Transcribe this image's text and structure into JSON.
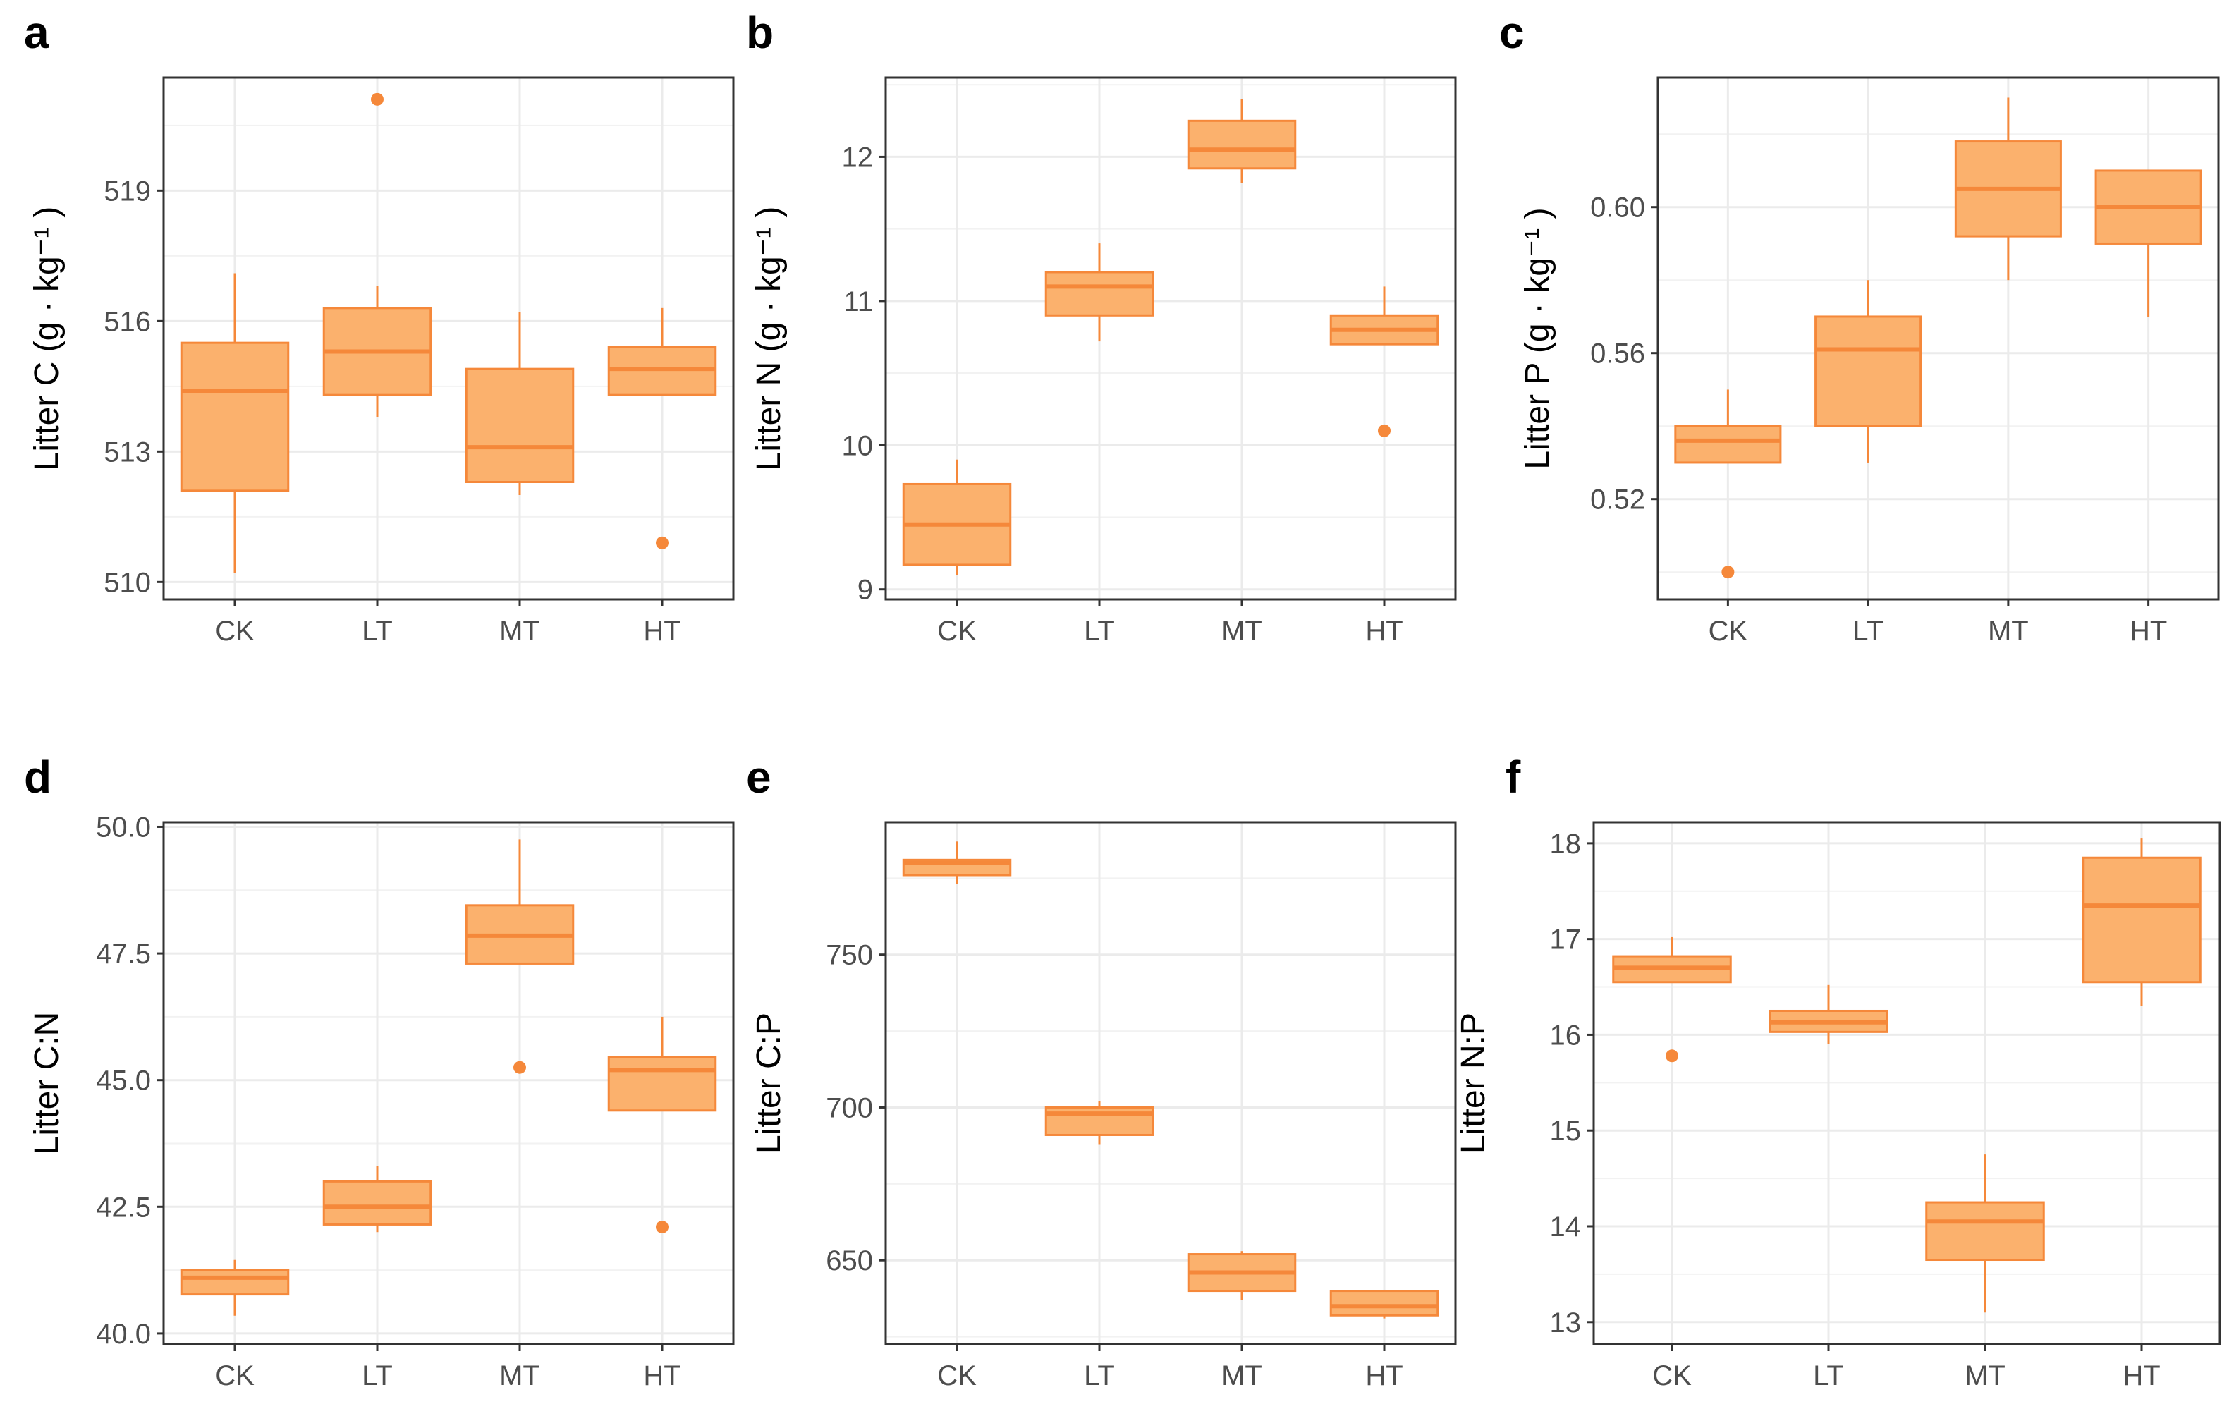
{
  "style": {
    "box_fill": "#fbb16d",
    "box_line": "#f5883a",
    "grid_major": "#ebebeb",
    "grid_minor": "#f2f2f2",
    "panel_border": "#333333"
  },
  "chart_data": [
    {
      "panel": "a",
      "type": "box",
      "ylabel": "Litter C (g · kg⁻¹ )",
      "categories": [
        "CK",
        "LT",
        "MT",
        "HT"
      ],
      "yticks": [
        510,
        513,
        516,
        519
      ],
      "yticklabels": [
        "510",
        "513",
        "516",
        "519"
      ],
      "ylim": [
        509.6,
        521.6
      ],
      "boxes": [
        {
          "category": "CK",
          "min": 510.2,
          "q1": 512.1,
          "median": 514.4,
          "q3": 515.5,
          "max": 517.1,
          "outliers": []
        },
        {
          "category": "LT",
          "min": 513.8,
          "q1": 514.3,
          "median": 515.3,
          "q3": 516.3,
          "max": 516.8,
          "outliers": [
            521.1
          ]
        },
        {
          "category": "MT",
          "min": 512.0,
          "q1": 512.3,
          "median": 513.1,
          "q3": 514.9,
          "max": 516.2,
          "outliers": []
        },
        {
          "category": "HT",
          "min": 514.3,
          "q1": 514.3,
          "median": 514.9,
          "q3": 515.4,
          "max": 516.3,
          "outliers": [
            510.9
          ]
        }
      ]
    },
    {
      "panel": "b",
      "type": "box",
      "ylabel": "Litter N (g · kg⁻¹ )",
      "categories": [
        "CK",
        "LT",
        "MT",
        "HT"
      ],
      "yticks": [
        9,
        10,
        11,
        12
      ],
      "yticklabels": [
        "9",
        "10",
        "11",
        "12"
      ],
      "ylim": [
        8.93,
        12.55
      ],
      "boxes": [
        {
          "category": "CK",
          "min": 9.1,
          "q1": 9.17,
          "median": 9.45,
          "q3": 9.73,
          "max": 9.9,
          "outliers": []
        },
        {
          "category": "LT",
          "min": 10.72,
          "q1": 10.9,
          "median": 11.1,
          "q3": 11.2,
          "max": 11.4,
          "outliers": []
        },
        {
          "category": "MT",
          "min": 11.82,
          "q1": 11.92,
          "median": 12.05,
          "q3": 12.25,
          "max": 12.4,
          "outliers": []
        },
        {
          "category": "HT",
          "min": 10.7,
          "q1": 10.7,
          "median": 10.8,
          "q3": 10.9,
          "max": 11.1,
          "outliers": [
            10.1
          ]
        }
      ]
    },
    {
      "panel": "c",
      "type": "box",
      "ylabel": "Litter P (g · kg⁻¹ )",
      "categories": [
        "CK",
        "LT",
        "MT",
        "HT"
      ],
      "yticks": [
        0.52,
        0.56,
        0.6
      ],
      "yticklabels": [
        "0.52",
        "0.56",
        "0.60"
      ],
      "ylim": [
        0.4925,
        0.6355
      ],
      "boxes": [
        {
          "category": "CK",
          "min": 0.53,
          "q1": 0.53,
          "median": 0.536,
          "q3": 0.54,
          "max": 0.55,
          "outliers": [
            0.5
          ]
        },
        {
          "category": "LT",
          "min": 0.53,
          "q1": 0.54,
          "median": 0.561,
          "q3": 0.57,
          "max": 0.58,
          "outliers": []
        },
        {
          "category": "MT",
          "min": 0.58,
          "q1": 0.592,
          "median": 0.605,
          "q3": 0.618,
          "max": 0.63,
          "outliers": []
        },
        {
          "category": "HT",
          "min": 0.57,
          "q1": 0.59,
          "median": 0.6,
          "q3": 0.61,
          "max": 0.61,
          "outliers": []
        }
      ]
    },
    {
      "panel": "d",
      "type": "box",
      "ylabel": "Litter C:N",
      "categories": [
        "CK",
        "LT",
        "MT",
        "HT"
      ],
      "yticks": [
        40.0,
        42.5,
        45.0,
        47.5,
        50.0
      ],
      "yticklabels": [
        "40.0",
        "42.5",
        "45.0",
        "47.5",
        "50.0"
      ],
      "ylim": [
        39.79,
        50.09
      ],
      "boxes": [
        {
          "category": "CK",
          "min": 40.35,
          "q1": 40.77,
          "median": 41.1,
          "q3": 41.25,
          "max": 41.45,
          "outliers": []
        },
        {
          "category": "LT",
          "min": 42.0,
          "q1": 42.15,
          "median": 42.5,
          "q3": 43.0,
          "max": 43.3,
          "outliers": []
        },
        {
          "category": "MT",
          "min": 47.3,
          "q1": 47.3,
          "median": 47.85,
          "q3": 48.45,
          "max": 49.75,
          "outliers": [
            45.25
          ]
        },
        {
          "category": "HT",
          "min": 44.4,
          "q1": 44.4,
          "median": 45.2,
          "q3": 45.45,
          "max": 46.25,
          "outliers": [
            42.1
          ]
        }
      ]
    },
    {
      "panel": "e",
      "type": "box",
      "ylabel": "Litter C:P",
      "categories": [
        "CK",
        "LT",
        "MT",
        "HT"
      ],
      "yticks": [
        650,
        700,
        750
      ],
      "yticklabels": [
        "650",
        "700",
        "750"
      ],
      "ylim": [
        622.6,
        793.3
      ],
      "boxes": [
        {
          "category": "CK",
          "min": 773,
          "q1": 776,
          "median": 780,
          "q3": 781,
          "max": 787,
          "outliers": []
        },
        {
          "category": "LT",
          "min": 688,
          "q1": 691,
          "median": 698,
          "q3": 700,
          "max": 702,
          "outliers": []
        },
        {
          "category": "MT",
          "min": 637,
          "q1": 640,
          "median": 646,
          "q3": 652,
          "max": 653,
          "outliers": []
        },
        {
          "category": "HT",
          "min": 631,
          "q1": 632,
          "median": 635,
          "q3": 640,
          "max": 640,
          "outliers": []
        }
      ]
    },
    {
      "panel": "f",
      "type": "box",
      "ylabel": "Litter N:P",
      "categories": [
        "CK",
        "LT",
        "MT",
        "HT"
      ],
      "yticks": [
        13,
        14,
        15,
        16,
        17,
        18
      ],
      "yticklabels": [
        "13",
        "14",
        "15",
        "16",
        "17",
        "18"
      ],
      "ylim": [
        12.77,
        18.22
      ],
      "boxes": [
        {
          "category": "CK",
          "min": 16.55,
          "q1": 16.55,
          "median": 16.7,
          "q3": 16.82,
          "max": 17.02,
          "outliers": [
            15.78
          ]
        },
        {
          "category": "LT",
          "min": 15.9,
          "q1": 16.03,
          "median": 16.13,
          "q3": 16.25,
          "max": 16.52,
          "outliers": []
        },
        {
          "category": "MT",
          "min": 13.1,
          "q1": 13.65,
          "median": 14.05,
          "q3": 14.25,
          "max": 14.75,
          "outliers": []
        },
        {
          "category": "HT",
          "min": 16.3,
          "q1": 16.55,
          "median": 17.35,
          "q3": 17.85,
          "max": 18.05,
          "outliers": []
        }
      ]
    }
  ]
}
